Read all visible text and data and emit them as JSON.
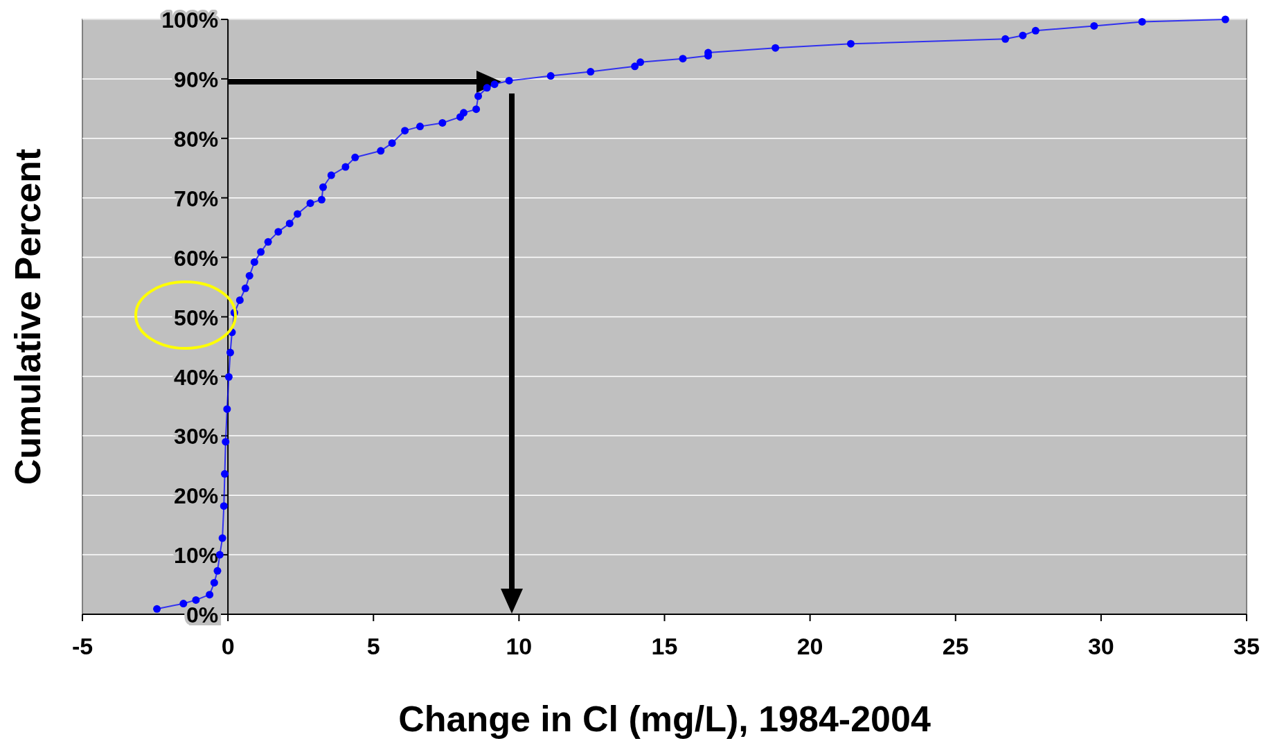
{
  "chart_data": {
    "type": "line",
    "xlabel": "Change in Cl (mg/L), 1984-2004",
    "ylabel": "Cumulative Percent",
    "series": [
      {
        "color": "#0000ff",
        "x": [
          -2.44,
          -1.53,
          -1.1,
          -0.63,
          -0.47,
          -0.36,
          -0.28,
          -0.19,
          -0.14,
          -0.11,
          -0.08,
          -0.03,
          0.03,
          0.08,
          0.14,
          0.22,
          0.41,
          0.6,
          0.74,
          0.91,
          1.13,
          1.38,
          1.73,
          2.12,
          2.39,
          2.83,
          3.22,
          3.27,
          3.55,
          4.04,
          4.37,
          5.25,
          5.64,
          6.08,
          6.6,
          7.37,
          7.98,
          8.1,
          8.53,
          8.6,
          8.9,
          9.16,
          9.66,
          11.09,
          12.46,
          13.98,
          14.17,
          15.63,
          16.5,
          16.5,
          18.81,
          21.4,
          26.71,
          27.31,
          27.75,
          29.76,
          31.41,
          34.27
        ],
        "values": [
          0.9,
          1.8,
          2.4,
          3.3,
          5.3,
          7.3,
          10,
          12.8,
          18.2,
          23.6,
          29,
          34.5,
          39.9,
          44,
          47.4,
          50.7,
          52.8,
          54.8,
          56.9,
          59.2,
          60.9,
          62.6,
          64.3,
          65.7,
          67.3,
          69.1,
          69.7,
          71.8,
          73.8,
          75.2,
          76.8,
          77.9,
          79.2,
          81.3,
          82,
          82.6,
          83.6,
          84.3,
          84.9,
          87.1,
          88.5,
          89.1,
          89.7,
          90.5,
          91.2,
          92.1,
          92.8,
          93.4,
          93.9,
          94.4,
          95.2,
          95.9,
          96.7,
          97.3,
          98.1,
          98.9,
          99.6,
          100
        ]
      }
    ],
    "xlim": [
      -5,
      35
    ],
    "xticks": [
      -5,
      0,
      5,
      10,
      15,
      20,
      25,
      30,
      35
    ],
    "ylim": [
      0,
      100
    ],
    "yticks": [
      {
        "value": 0,
        "label": "0%"
      },
      {
        "value": 10,
        "label": "10%"
      },
      {
        "value": 20,
        "label": "20%"
      },
      {
        "value": 30,
        "label": "30%"
      },
      {
        "value": 40,
        "label": "40%"
      },
      {
        "value": 50,
        "label": "50%"
      },
      {
        "value": 60,
        "label": "60%"
      },
      {
        "value": 70,
        "label": "70%"
      },
      {
        "value": 80,
        "label": "80%"
      },
      {
        "value": 90,
        "label": "90%"
      },
      {
        "value": 100,
        "label": "100%"
      }
    ],
    "grid": "y",
    "marker": "circle",
    "line_style": "solid"
  }
}
